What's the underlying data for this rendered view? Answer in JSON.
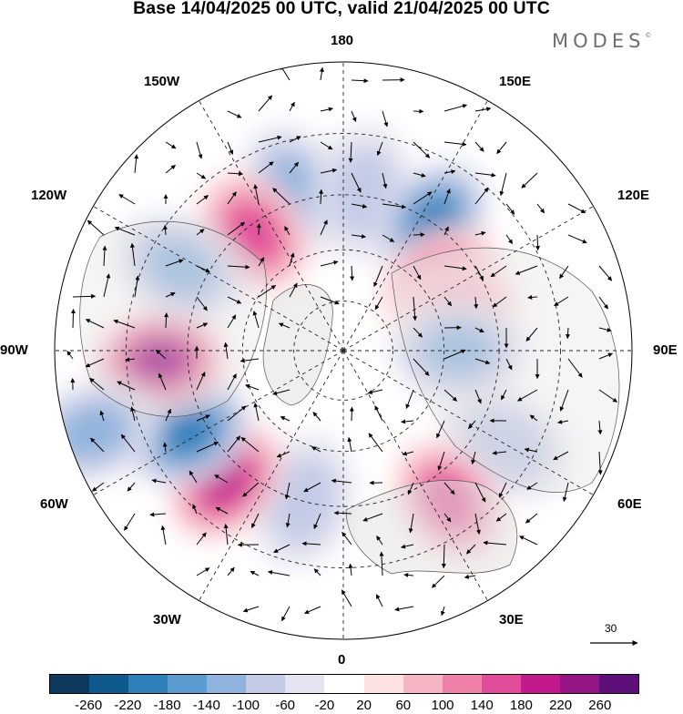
{
  "title": "Base 14/04/2025 00 UTC, valid 21/04/2025 00 UTC",
  "brand": "MODES",
  "brand_mark": "©",
  "longitude_labels": [
    "180",
    "150E",
    "120E",
    "90E",
    "60E",
    "30E",
    "0",
    "30W",
    "60W",
    "90W",
    "120W",
    "150W"
  ],
  "vector_scale_label": "30",
  "colorbar": {
    "colors": [
      "#0d3a5c",
      "#0f5a8c",
      "#2f7fba",
      "#5a9bd0",
      "#8eb3dd",
      "#c3cbe6",
      "#e6e4f0",
      "#ffffff",
      "#fde0e0",
      "#f6b4c4",
      "#ee7fa6",
      "#e04b9a",
      "#c21a8d",
      "#951587",
      "#5e0f7a"
    ],
    "tick_labels": [
      "-260",
      "-220",
      "-180",
      "-140",
      "-100",
      "-60",
      "-20",
      "20",
      "60",
      "100",
      "140",
      "180",
      "220",
      "260"
    ]
  },
  "map_data": {
    "projection": "north polar stereographic",
    "anomalies": [
      {
        "lon": -162,
        "lat": 42,
        "value": -100
      },
      {
        "lon": -143,
        "lat": 47,
        "value": 160
      },
      {
        "lon": 173,
        "lat": 44,
        "value": -90
      },
      {
        "lon": 145,
        "lat": 45,
        "value": -200
      },
      {
        "lon": 125,
        "lat": 55,
        "value": 160
      },
      {
        "lon": 110,
        "lat": 55,
        "value": 60
      },
      {
        "lon": 90,
        "lat": 56,
        "value": -110
      },
      {
        "lon": 60,
        "lat": 37,
        "value": -80
      },
      {
        "lon": 35,
        "lat": 38,
        "value": 140
      },
      {
        "lon": -15,
        "lat": 45,
        "value": -60
      },
      {
        "lon": -42,
        "lat": 40,
        "value": 180
      },
      {
        "lon": -62,
        "lat": 40,
        "value": -200
      },
      {
        "lon": -87,
        "lat": 38,
        "value": 220
      },
      {
        "lon": -117,
        "lat": 38,
        "value": -120
      },
      {
        "lon": -72,
        "lat": 20,
        "value": -120
      }
    ]
  }
}
